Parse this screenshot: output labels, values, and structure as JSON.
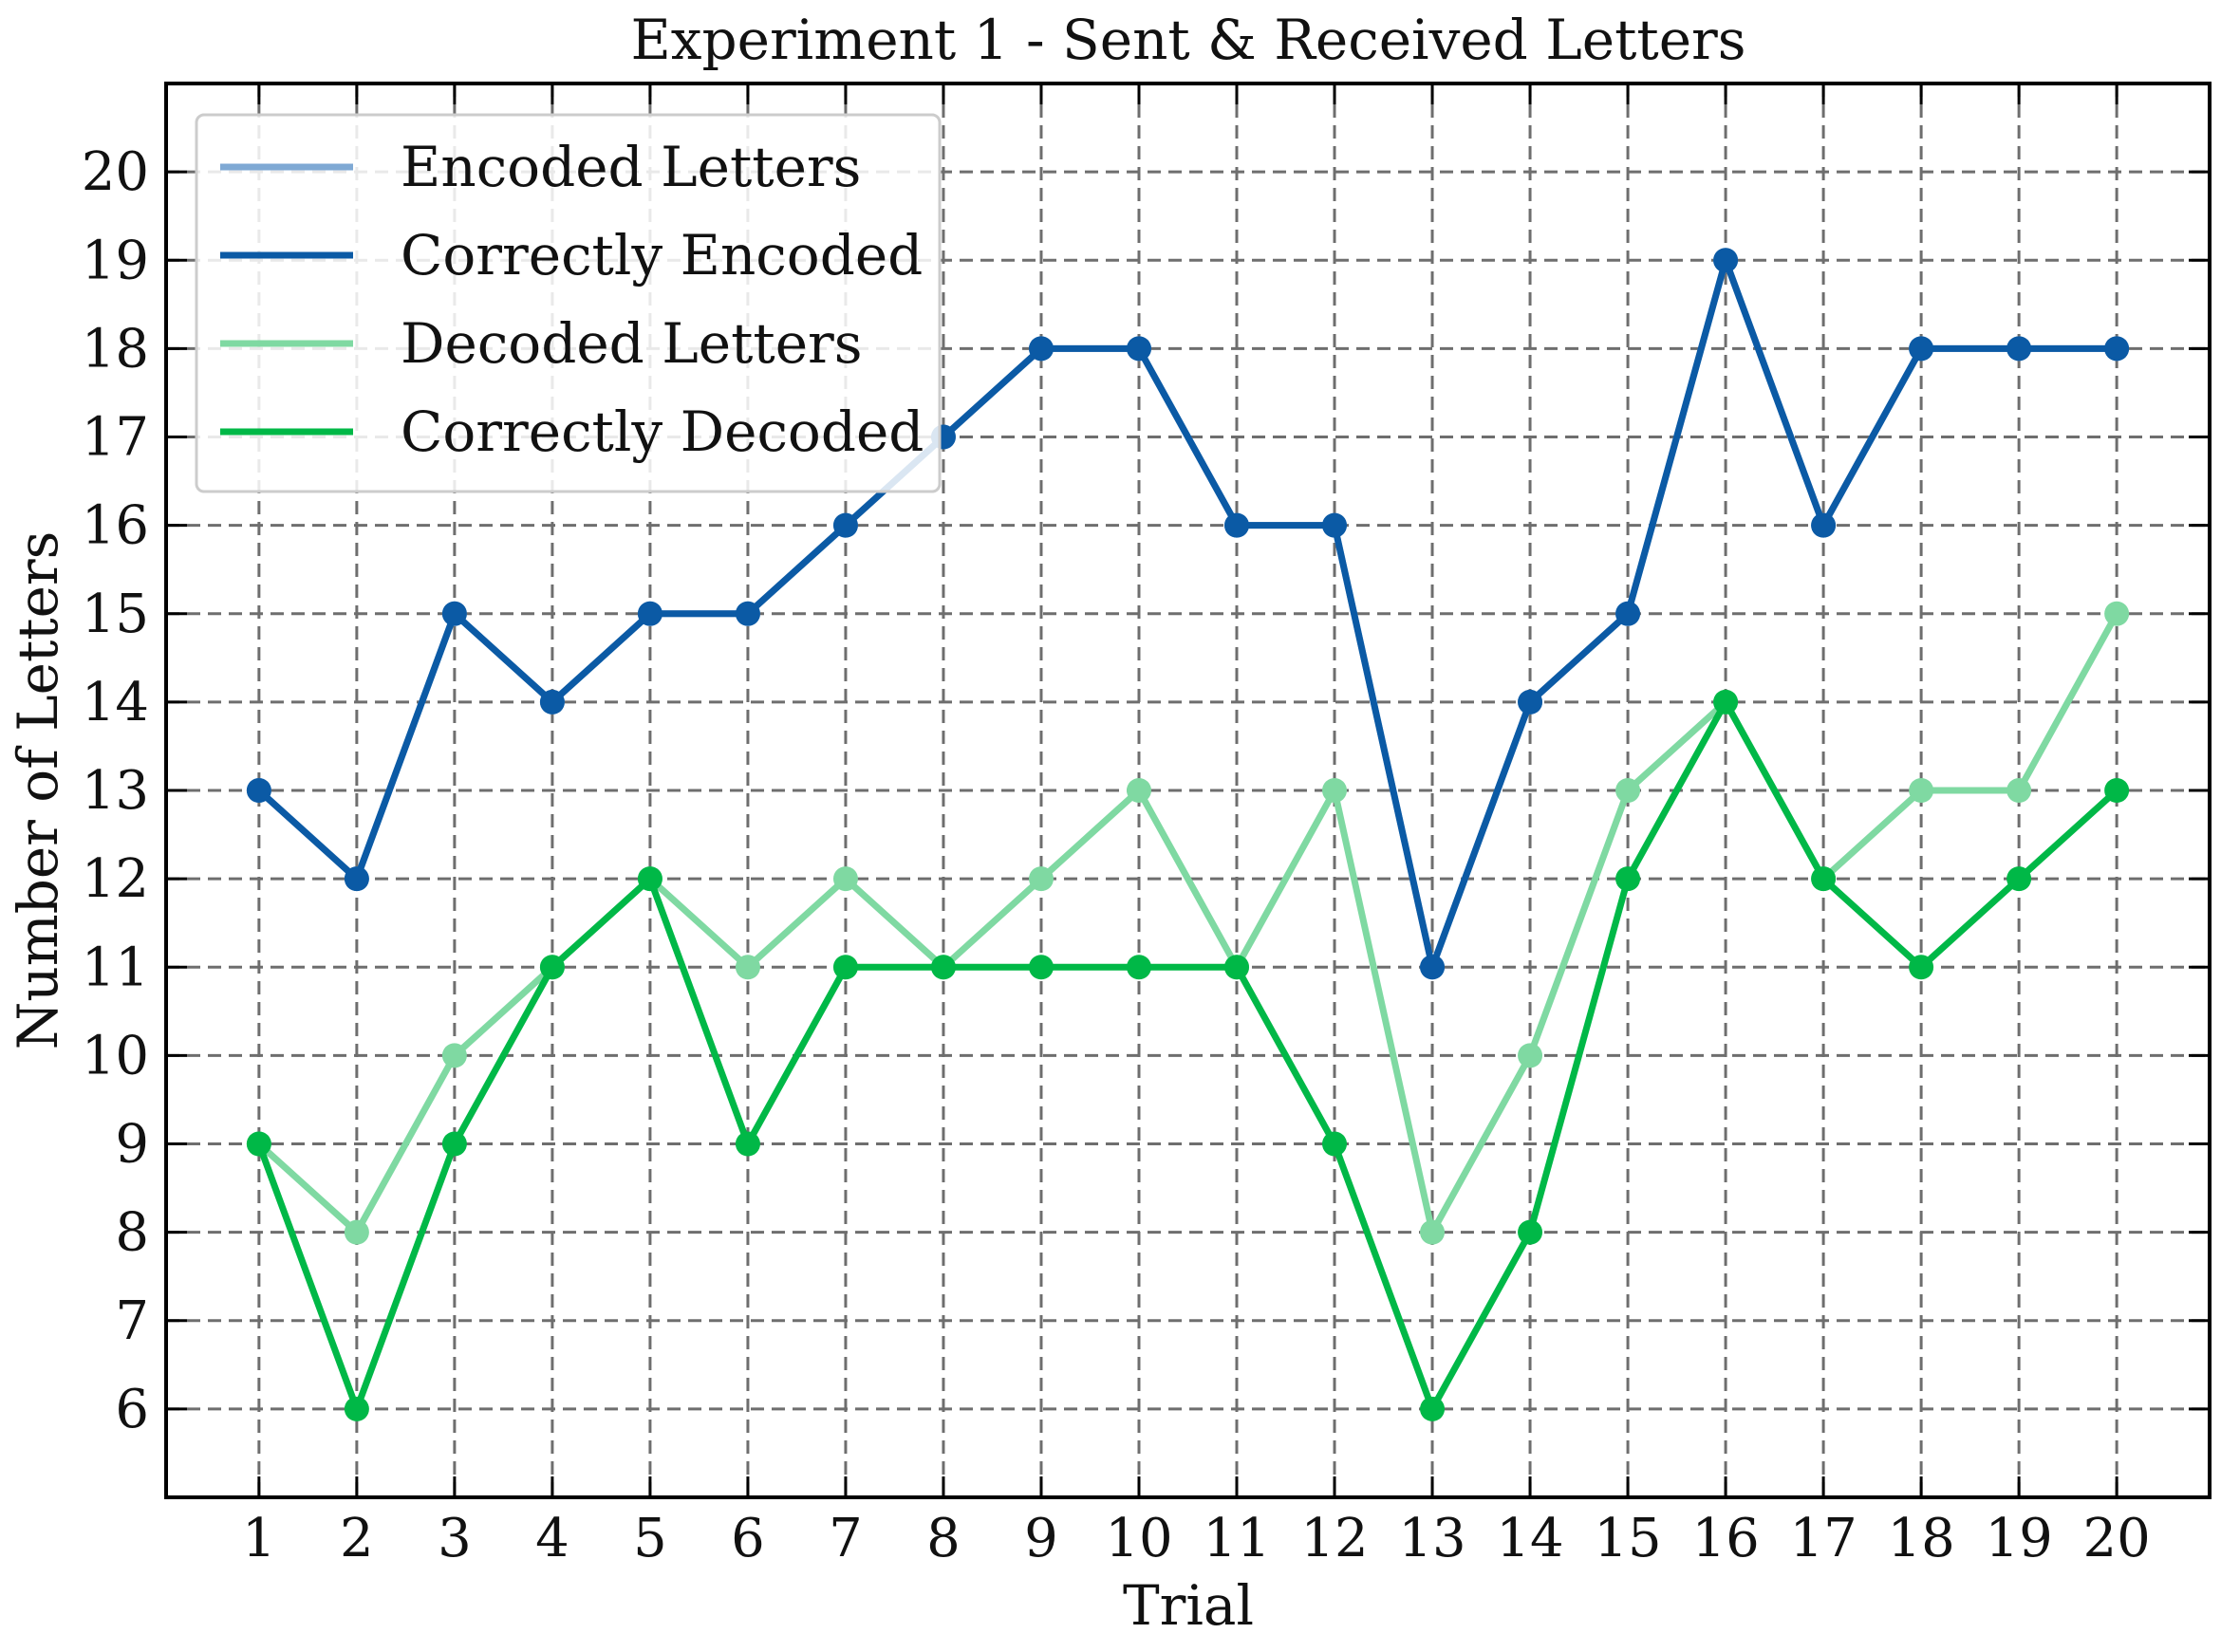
{
  "chart_data": {
    "type": "line",
    "title": "Experiment 1 - Sent & Received Letters",
    "xlabel": "Trial",
    "ylabel": "Number of Letters",
    "x": [
      1,
      2,
      3,
      4,
      5,
      6,
      7,
      8,
      9,
      10,
      11,
      12,
      13,
      14,
      15,
      16,
      17,
      18,
      19,
      20
    ],
    "xlim": [
      0.05,
      20.95
    ],
    "ylim": [
      5.0,
      21.0
    ],
    "yticks": [
      6,
      7,
      8,
      9,
      10,
      11,
      12,
      13,
      14,
      15,
      16,
      17,
      18,
      19,
      20
    ],
    "grid": true,
    "legend_position": "top-left",
    "series": [
      {
        "name": "Encoded Letters",
        "color": "#7fa9d4",
        "opacity": 1.0,
        "values": [
          13,
          12,
          15,
          14,
          15,
          15,
          16,
          17,
          18,
          18,
          16,
          16,
          11,
          14,
          15,
          19,
          16,
          18,
          18,
          18
        ]
      },
      {
        "name": "Correctly Encoded",
        "color": "#0b5aa5",
        "opacity": 1.0,
        "values": [
          13,
          12,
          15,
          14,
          15,
          15,
          16,
          17,
          18,
          18,
          16,
          16,
          11,
          14,
          15,
          19,
          16,
          18,
          18,
          18
        ]
      },
      {
        "name": "Decoded Letters",
        "color": "#7fd9a2",
        "opacity": 1.0,
        "values": [
          9,
          8,
          10,
          11,
          12,
          11,
          12,
          11,
          12,
          13,
          11,
          13,
          8,
          10,
          13,
          14,
          12,
          13,
          13,
          15
        ]
      },
      {
        "name": "Correctly Decoded",
        "color": "#00b847",
        "opacity": 1.0,
        "values": [
          9,
          6,
          9,
          11,
          12,
          9,
          11,
          11,
          11,
          11,
          11,
          9,
          6,
          8,
          12,
          14,
          12,
          11,
          12,
          13
        ]
      }
    ]
  }
}
